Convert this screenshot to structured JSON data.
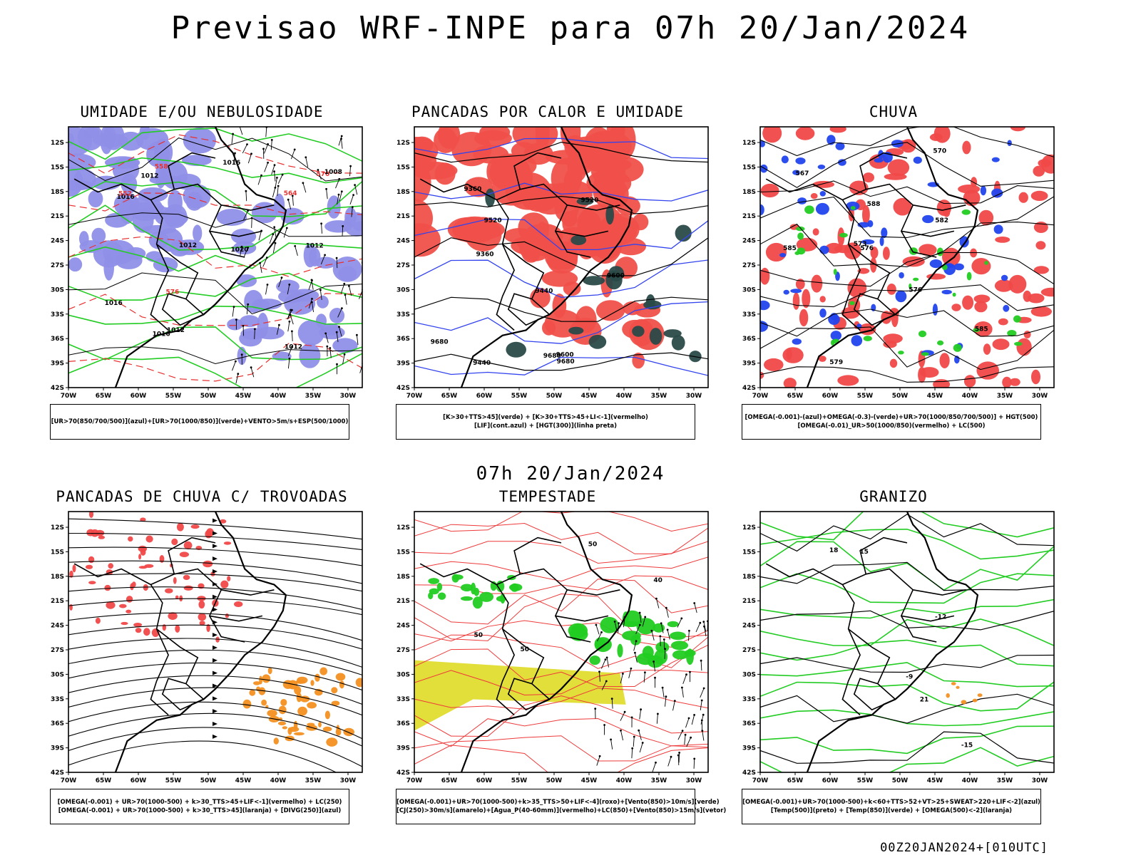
{
  "header": {
    "title": "Previsao WRF-INPE  para 07h 20/Jan/2024",
    "subtitle": "07h 20/Jan/2024",
    "footer": "00Z20JAN2024+[010UTC]"
  },
  "axes": {
    "lat_labels": [
      "12S",
      "15S",
      "18S",
      "21S",
      "24S",
      "27S",
      "30S",
      "33S",
      "36S",
      "39S",
      "42S"
    ],
    "lon_labels": [
      "70W",
      "65W",
      "60W",
      "55W",
      "50W",
      "45W",
      "40W",
      "35W",
      "30W"
    ]
  },
  "panels": [
    {
      "title": "UMIDADE E/OU NEBULOSIDADE",
      "caption": [
        "[UR>70(850/700/500)](azul)+[UR>70(1000/850)](verde)+VENTO>5m/s+ESP(500/1000)"
      ],
      "labels": [
        "1012",
        "1012",
        "1012",
        "1012",
        "1016",
        "1016",
        "1020",
        "1016",
        "576",
        "570",
        "564",
        "558",
        "552",
        "1008",
        "1012",
        "1016"
      ],
      "colors": {
        "fill": "#8f8fe8",
        "contour": "#22cc22",
        "dashed": "#e83030"
      }
    },
    {
      "title": "PANCADAS POR CALOR E UMIDADE",
      "caption": [
        "[K>30+TTS>45](verde) + [K>30+TTS>45+LI<-1](vermelho)",
        "[LIF](cont.azul) + [HGT(300)](linha preta)"
      ],
      "labels": [
        "9680",
        "9680",
        "9680",
        "9600",
        "9600",
        "9520",
        "9520",
        "9440",
        "9440",
        "9360",
        "9360"
      ],
      "colors": {
        "fill": "#f0504a",
        "dark": "#2a4a48",
        "contour": "#3344ee"
      }
    },
    {
      "title": "CHUVA",
      "caption": [
        "[OMEGA(-0.001)-(azul)+OMEGA(-0.3)-(verde)+UR>70(1000/850/700/500)] + HGT(500)",
        "[OMEGA(-0.01)_UR>50(1000/850)(vermelho) + LC(500)"
      ],
      "labels": [
        "585",
        "585",
        "582",
        "579",
        "576",
        "573",
        "570",
        "567",
        "576",
        "588"
      ],
      "colors": {
        "fill": "#f04848",
        "blue": "#2244ee",
        "green": "#22cc22"
      }
    },
    {
      "title": "PANCADAS DE CHUVA C/ TROVOADAS",
      "caption": [
        "[OMEGA(-0.001) + UR>70(1000-500) + k>30_TTS>45+LIF<-1](vermelho) + LC(250)",
        "[OMEGA(-0.001) + UR>70(1000-500) + k>30_TTS>45](laranja) + [DIVG(250)](azul)"
      ],
      "labels": [],
      "colors": {
        "red": "#f04848",
        "orange": "#f39020"
      }
    },
    {
      "title": "TEMPESTADE",
      "caption": [
        "[OMEGA(-0.001)+UR>70(1000-500)+k>35_TTS>50+LIF<-4](roxo)+[Vento(850)>10m/s](verde)",
        "[CJ(250)>30m/s](amarelo)+[Agua_P(40-60mm)](vermelho)+LC(850)+[Vento(850)>15m/s](vetor)"
      ],
      "labels": [
        "50",
        "50",
        "40",
        "50"
      ],
      "colors": {
        "yellow": "#e2de3a",
        "green": "#22cc22",
        "red": "#ee3a3a"
      }
    },
    {
      "title": "GRANIZO",
      "caption": [
        "[OMEGA(-0.001)+UR>70(1000-500)+k<60+TTS>52+VT>25+SWEAT>220+LIF<-2](azul)",
        "[Temp(500)](preto) + [Temp(850)](verde) + [OMEGA(500)<-2](laranja)"
      ],
      "labels": [
        "-12",
        "-15",
        "-9",
        "15",
        "18",
        "21"
      ],
      "colors": {
        "green": "#22cc22",
        "orange": "#f39020"
      }
    }
  ]
}
